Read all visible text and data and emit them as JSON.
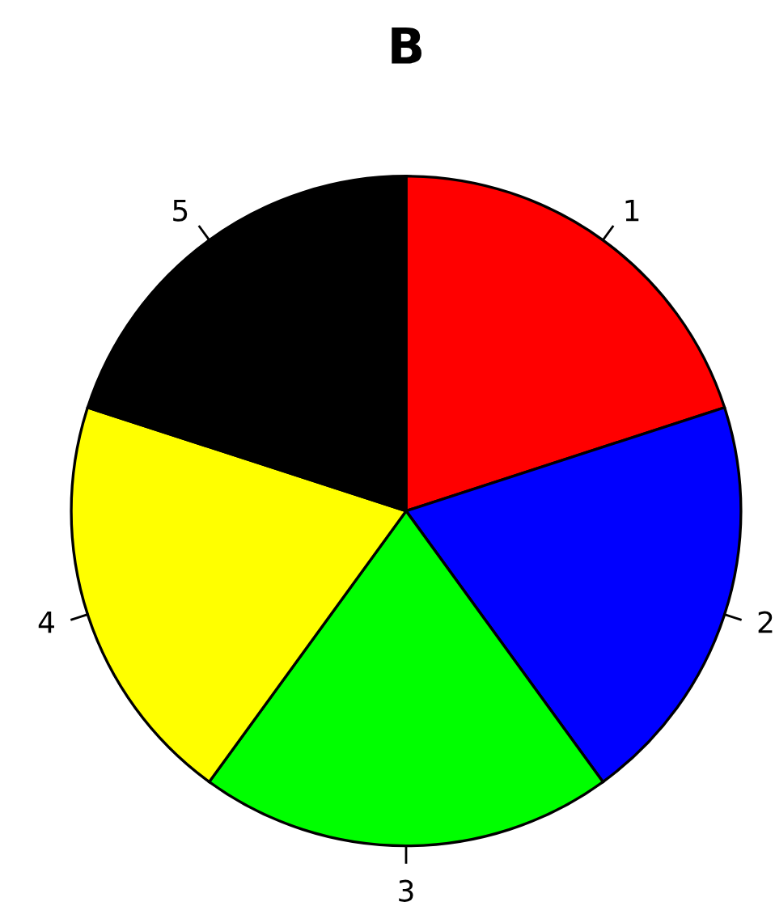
{
  "chart_data": {
    "type": "pie",
    "title": "B",
    "categories": [
      "1",
      "2",
      "3",
      "4",
      "5"
    ],
    "values": [
      20,
      20,
      20,
      20,
      20
    ],
    "colors": [
      "#ff0000",
      "#0000ff",
      "#00ff00",
      "#ffff00",
      "#000000"
    ]
  }
}
